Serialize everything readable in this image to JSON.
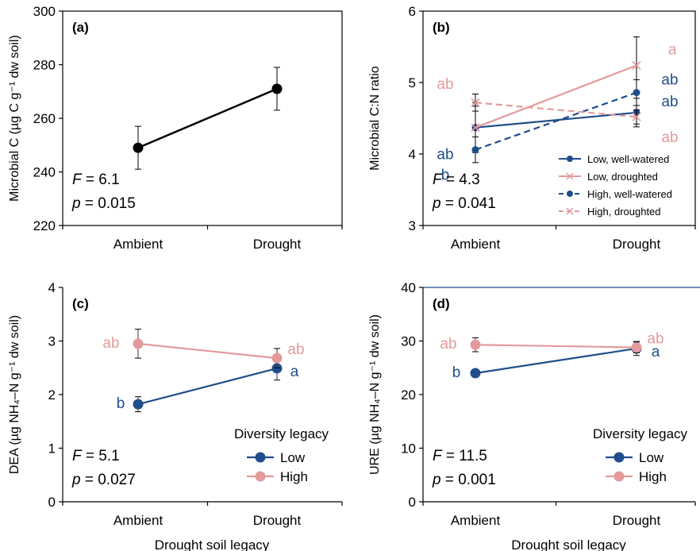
{
  "colors": {
    "low": "#1f4e8a",
    "high": "#e39a9c",
    "black": "#000000"
  },
  "chart_data": [
    {
      "id": "a",
      "type": "line",
      "panel_label": "(a)",
      "ylabel": "Microbial C (µg C g⁻¹ dw soil)",
      "xlabel": "",
      "categories": [
        "Ambient",
        "Drought"
      ],
      "ylim": [
        220,
        300
      ],
      "yticks": [
        "220",
        "240",
        "260",
        "280",
        "300"
      ],
      "series": [
        {
          "name": "",
          "color": "black",
          "dashed": false,
          "marker": "circle",
          "values": [
            249,
            271
          ],
          "errors": [
            8,
            8
          ],
          "letters": [
            "",
            ""
          ]
        }
      ],
      "stats": {
        "F": "6.1",
        "p": "0.015"
      }
    },
    {
      "id": "b",
      "type": "line",
      "panel_label": "(b)",
      "ylabel": "Microbial C:N ratio",
      "xlabel": "",
      "categories": [
        "Ambient",
        "Drought"
      ],
      "ylim": [
        3,
        6
      ],
      "yticks": [
        "3",
        "4",
        "5",
        "6"
      ],
      "series": [
        {
          "name": "Low, well-watered",
          "color": "low",
          "dashed": false,
          "marker": "circle",
          "values": [
            4.37,
            4.58
          ],
          "errors": [
            0.35,
            0.2
          ],
          "letters": [
            "ab",
            "ab"
          ]
        },
        {
          "name": "Low, droughted",
          "color": "high",
          "dashed": false,
          "marker": "x",
          "values": [
            4.37,
            5.24
          ],
          "errors": [
            0.3,
            0.4
          ],
          "letters": [
            "",
            "a"
          ]
        },
        {
          "name": "High, well-watered",
          "color": "low",
          "dashed": true,
          "marker": "circle",
          "values": [
            4.06,
            4.86
          ],
          "errors": [
            0.18,
            0.18
          ],
          "letters": [
            "b",
            "ab"
          ]
        },
        {
          "name": "High, droughted",
          "color": "high",
          "dashed": true,
          "marker": "x",
          "values": [
            4.72,
            4.52
          ],
          "errors": [
            0.12,
            0.1
          ],
          "letters": [
            "ab",
            "ab"
          ]
        }
      ],
      "legend_position": "bottom-right",
      "stats": {
        "F": "4.3",
        "p": "0.041"
      }
    },
    {
      "id": "c",
      "type": "line",
      "panel_label": "(c)",
      "ylabel": "DEA (µg NH₄–N g⁻¹ dw soil)",
      "xlabel": "Drought soil legacy",
      "categories": [
        "Ambient",
        "Drought"
      ],
      "ylim": [
        0,
        4
      ],
      "yticks": [
        "0",
        "1",
        "2",
        "3",
        "4"
      ],
      "series": [
        {
          "name": "Low",
          "color": "low",
          "dashed": false,
          "marker": "circle",
          "values": [
            1.82,
            2.49
          ],
          "errors": [
            0.14,
            0.22
          ],
          "letters": [
            "b",
            "a"
          ]
        },
        {
          "name": "High",
          "color": "high",
          "dashed": false,
          "marker": "circle",
          "values": [
            2.95,
            2.68
          ],
          "errors": [
            0.27,
            0.18
          ],
          "letters": [
            "ab",
            "ab"
          ]
        }
      ],
      "legend_title": "Diversity legacy",
      "legend_position": "bottom-right",
      "stats": {
        "F": "5.1",
        "p": "0.027"
      }
    },
    {
      "id": "d",
      "type": "line",
      "panel_label": "(d)",
      "ylabel": "URE (µg NH₄–N g⁻¹ dw soil)",
      "xlabel": "Drought soil legacy",
      "categories": [
        "Ambient",
        "Drought"
      ],
      "ylim": [
        0,
        40
      ],
      "yticks": [
        "0",
        "10",
        "20",
        "30",
        "40"
      ],
      "series": [
        {
          "name": "Low",
          "color": "low",
          "dashed": false,
          "marker": "circle",
          "values": [
            24.0,
            28.6
          ],
          "errors": [
            0,
            1.3
          ],
          "letters": [
            "b",
            "a"
          ]
        },
        {
          "name": "High",
          "color": "high",
          "dashed": false,
          "marker": "circle",
          "values": [
            29.3,
            28.8
          ],
          "errors": [
            1.3,
            1.0
          ],
          "letters": [
            "ab",
            "ab"
          ]
        }
      ],
      "legend_title": "Diversity legacy",
      "legend_position": "bottom-right",
      "stats": {
        "F": "11.5",
        "p": "0.001"
      }
    }
  ]
}
